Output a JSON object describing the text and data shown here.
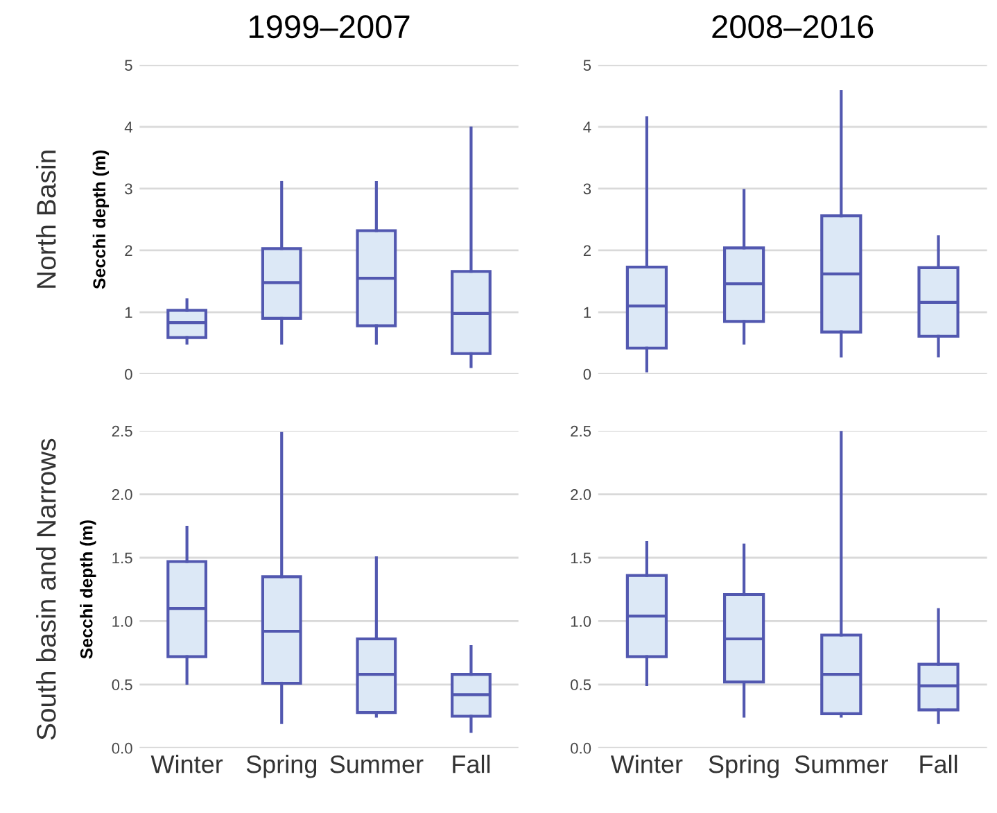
{
  "chart_data": [
    {
      "type": "box",
      "title": "1999–2007",
      "ylabel": "Secchi depth (m)",
      "annotations": [
        "North Basin"
      ],
      "categories": [
        null,
        null,
        null,
        null
      ],
      "ylim": [
        0,
        5
      ],
      "yticks": [
        0,
        1,
        2,
        3,
        4,
        5
      ],
      "grid": "y",
      "tick_labels": "y",
      "series": [
        {
          "color": "#5258b0",
          "boxes": [
            {
              "low": 0.5,
              "q1": 0.59,
              "median": 0.83,
              "q3": 1.03,
              "high": 1.2
            },
            {
              "low": 0.5,
              "q1": 0.9,
              "median": 1.48,
              "q3": 2.03,
              "high": 3.1
            },
            {
              "low": 0.5,
              "q1": 0.78,
              "median": 1.55,
              "q3": 2.32,
              "high": 3.1
            },
            {
              "low": 0.12,
              "q1": 0.33,
              "median": 0.98,
              "q3": 1.66,
              "high": 3.98
            }
          ]
        }
      ]
    },
    {
      "type": "box",
      "title": "2008–2016",
      "categories": [
        null,
        null,
        null,
        null
      ],
      "ylim": [
        0,
        5
      ],
      "yticks": [
        0,
        1,
        2,
        3,
        4,
        5
      ],
      "grid": "y",
      "tick_labels": "y",
      "series": [
        {
          "color": "#5258b0",
          "boxes": [
            {
              "low": 0.05,
              "q1": 0.42,
              "median": 1.1,
              "q3": 1.73,
              "high": 4.15
            },
            {
              "low": 0.5,
              "q1": 0.85,
              "median": 1.46,
              "q3": 2.04,
              "high": 2.97
            },
            {
              "low": 0.29,
              "q1": 0.68,
              "median": 1.62,
              "q3": 2.56,
              "high": 4.57
            },
            {
              "low": 0.29,
              "q1": 0.61,
              "median": 1.16,
              "q3": 1.72,
              "high": 2.22
            }
          ]
        }
      ]
    },
    {
      "type": "box",
      "ylabel": "Secchi depth (m)",
      "annotations": [
        "South basin and Narrows"
      ],
      "categories": [
        "Winter",
        "Spring",
        "Summer",
        "Fall"
      ],
      "ylim": [
        0,
        2.5
      ],
      "yticks": [
        {
          "value": 0,
          "label": "0.0"
        },
        0.5,
        {
          "value": 1,
          "label": "1.0"
        },
        1.5,
        {
          "value": 2,
          "label": "2.0"
        },
        2.5
      ],
      "grid": "y",
      "series": [
        {
          "color": "#5258b0",
          "boxes": [
            {
              "low": 0.51,
              "q1": 0.72,
              "median": 1.1,
              "q3": 1.47,
              "high": 1.74
            },
            {
              "low": 0.2,
              "q1": 0.51,
              "median": 0.92,
              "q3": 1.35,
              "high": 2.48
            },
            {
              "low": 0.25,
              "q1": 0.28,
              "median": 0.58,
              "q3": 0.86,
              "high": 1.5
            },
            {
              "low": 0.13,
              "q1": 0.25,
              "median": 0.42,
              "q3": 0.58,
              "high": 0.8
            }
          ]
        }
      ]
    },
    {
      "type": "box",
      "categories": [
        "Winter",
        "Spring",
        "Summer",
        "Fall"
      ],
      "ylim": [
        0,
        2.5
      ],
      "yticks": [
        {
          "value": 0,
          "label": "0.0"
        },
        0.5,
        {
          "value": 1,
          "label": "1.0"
        },
        1.5,
        {
          "value": 2,
          "label": "2.0"
        },
        2.5
      ],
      "grid": "y",
      "series": [
        {
          "color": "#5258b0",
          "boxes": [
            {
              "low": 0.5,
              "q1": 0.72,
              "median": 1.04,
              "q3": 1.36,
              "high": 1.62
            },
            {
              "low": 0.25,
              "q1": 0.52,
              "median": 0.86,
              "q3": 1.21,
              "high": 1.6
            },
            {
              "low": 0.25,
              "q1": 0.27,
              "median": 0.58,
              "q3": 0.89,
              "high": 2.5
            },
            {
              "low": 0.2,
              "q1": 0.3,
              "median": 0.49,
              "q3": 0.66,
              "high": 1.09
            }
          ]
        }
      ]
    }
  ]
}
